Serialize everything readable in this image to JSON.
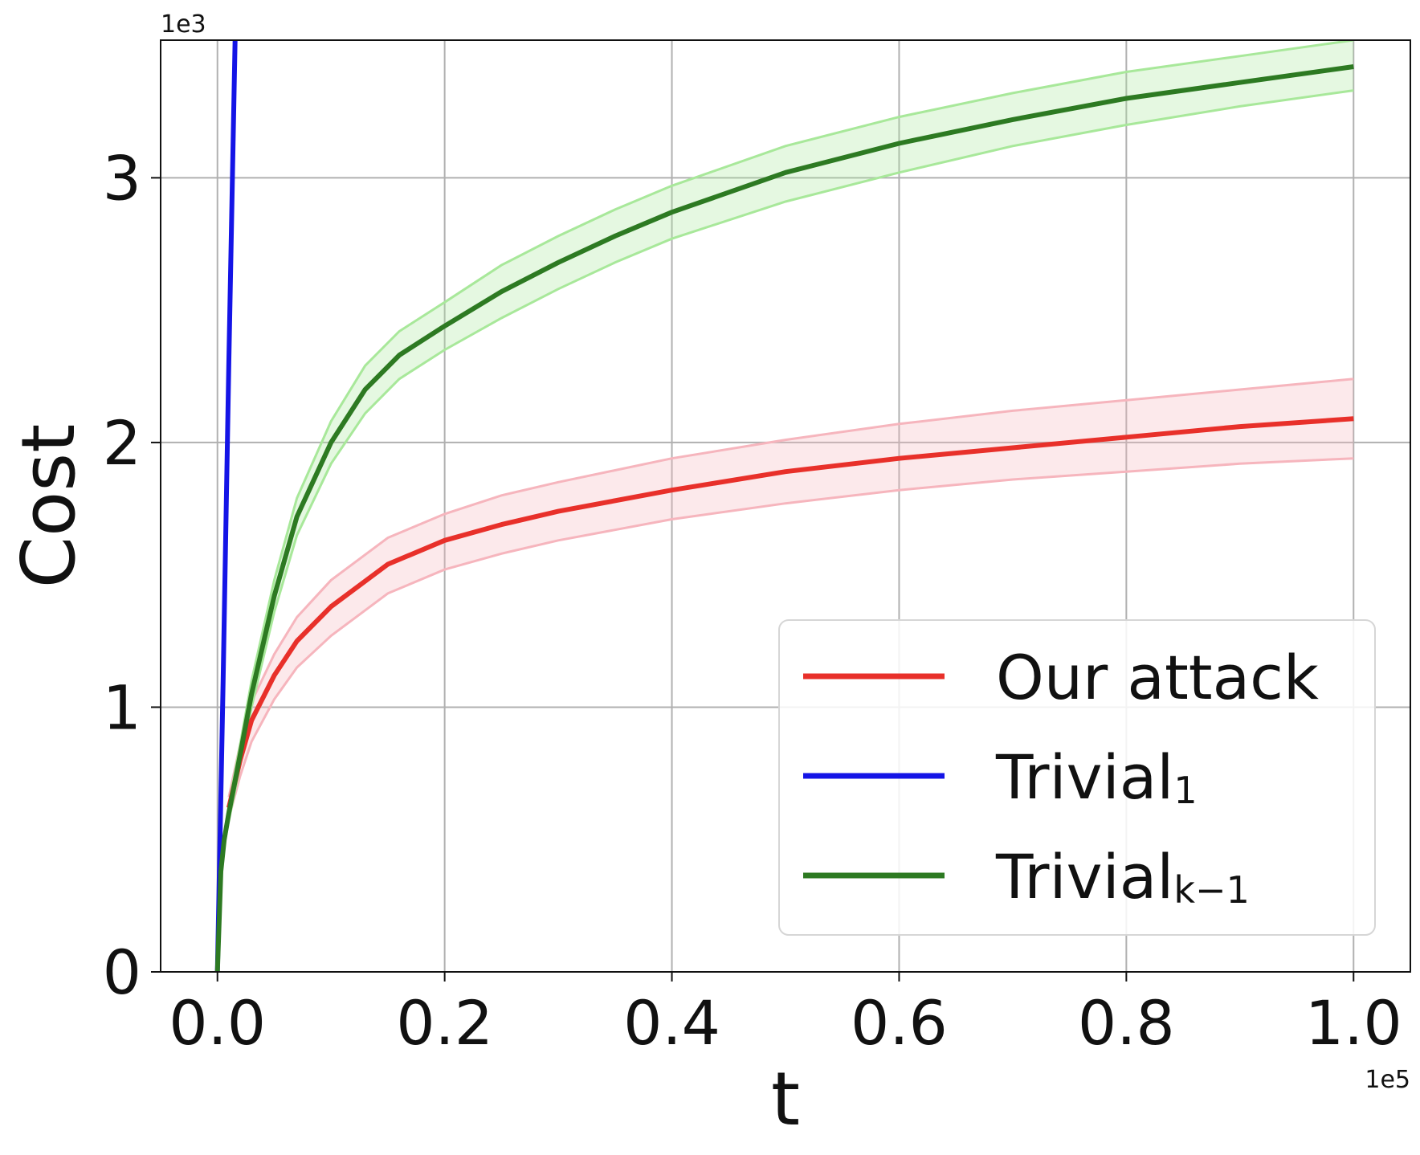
{
  "chart_data": {
    "type": "line",
    "xlabel": "t",
    "ylabel": "Cost",
    "x_offset_text": "1e5",
    "y_offset_text": "1e3",
    "xlim": [
      -0.05,
      1.05
    ],
    "ylim": [
      0,
      3.52
    ],
    "x_ticks": [
      0.0,
      0.2,
      0.4,
      0.6,
      0.8,
      1.0
    ],
    "x_tick_labels": [
      "0.0",
      "0.2",
      "0.4",
      "0.6",
      "0.8",
      "1.0"
    ],
    "y_ticks": [
      0,
      1,
      2,
      3
    ],
    "y_tick_labels": [
      "0",
      "1",
      "2",
      "3"
    ],
    "grid": true,
    "legend_position": "lower-right",
    "series": [
      {
        "name": "Our attack",
        "legend_main": "Our attack",
        "legend_sub": "",
        "color": "#e8302a",
        "band_color": "#f6b5bd",
        "x": [
          0.01,
          0.02,
          0.03,
          0.05,
          0.07,
          0.1,
          0.15,
          0.2,
          0.25,
          0.3,
          0.4,
          0.5,
          0.6,
          0.7,
          0.8,
          0.9,
          1.0
        ],
        "y": [
          0.62,
          0.8,
          0.95,
          1.12,
          1.25,
          1.38,
          1.54,
          1.63,
          1.69,
          1.74,
          1.82,
          1.89,
          1.94,
          1.98,
          2.02,
          2.06,
          2.09
        ],
        "lower": [
          0.58,
          0.74,
          0.87,
          1.03,
          1.15,
          1.27,
          1.43,
          1.52,
          1.58,
          1.63,
          1.71,
          1.77,
          1.82,
          1.86,
          1.89,
          1.92,
          1.94
        ],
        "upper": [
          0.66,
          0.86,
          1.02,
          1.2,
          1.34,
          1.48,
          1.64,
          1.73,
          1.8,
          1.85,
          1.94,
          2.01,
          2.07,
          2.12,
          2.16,
          2.2,
          2.24
        ]
      },
      {
        "name": "Trivial1",
        "legend_main": "Trivial",
        "legend_sub": "1",
        "color": "#1414e6",
        "x": [
          0.0,
          0.005,
          0.01,
          0.0155
        ],
        "y": [
          0.0,
          1.1,
          2.3,
          3.52
        ]
      },
      {
        "name": "Trivialk-1",
        "legend_main": "Trivial",
        "legend_sub": "k−1",
        "color": "#2d7a22",
        "band_color": "#a8e89a",
        "x": [
          0.0,
          0.003,
          0.006,
          0.01,
          0.02,
          0.03,
          0.05,
          0.07,
          0.1,
          0.13,
          0.16,
          0.2,
          0.25,
          0.3,
          0.35,
          0.4,
          0.5,
          0.6,
          0.7,
          0.8,
          0.9,
          1.0
        ],
        "y": [
          0.0,
          0.38,
          0.5,
          0.6,
          0.82,
          1.05,
          1.42,
          1.72,
          2.0,
          2.2,
          2.33,
          2.44,
          2.57,
          2.68,
          2.78,
          2.87,
          3.02,
          3.13,
          3.22,
          3.3,
          3.36,
          3.42
        ],
        "lower": [
          0.0,
          0.36,
          0.48,
          0.57,
          0.78,
          1.0,
          1.36,
          1.65,
          1.92,
          2.11,
          2.24,
          2.35,
          2.47,
          2.58,
          2.68,
          2.77,
          2.91,
          3.02,
          3.12,
          3.2,
          3.27,
          3.33
        ],
        "upper": [
          0.0,
          0.4,
          0.52,
          0.63,
          0.86,
          1.1,
          1.48,
          1.79,
          2.08,
          2.29,
          2.42,
          2.53,
          2.67,
          2.78,
          2.88,
          2.97,
          3.12,
          3.23,
          3.32,
          3.4,
          3.46,
          3.52
        ]
      }
    ]
  }
}
